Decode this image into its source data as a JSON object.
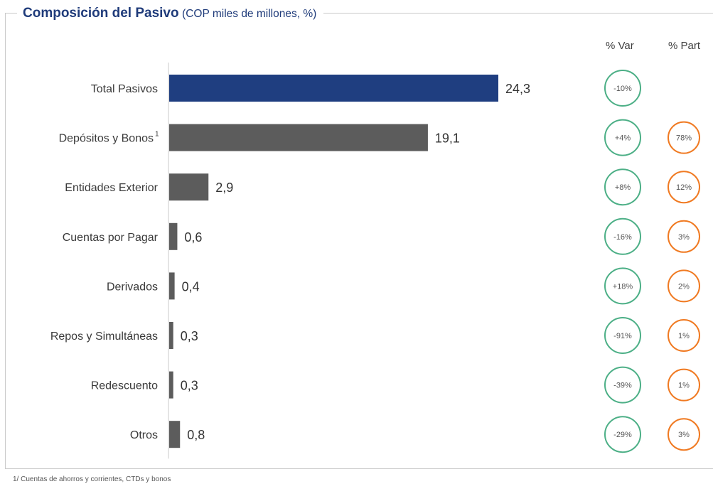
{
  "header": {
    "title": "Composición del Pasivo",
    "subtitle": "(COP miles de millones, %)"
  },
  "columns": {
    "var_label": "% Var",
    "part_label": "% Part"
  },
  "colors": {
    "total_bar": "#1f3e80",
    "item_bar": "#5c5c5c",
    "var_circle": "#4caf86",
    "part_circle": "#f07a22"
  },
  "chart_data": {
    "type": "bar",
    "orientation": "horizontal",
    "categories": [
      "Total Pasivos",
      "Depósitos y Bonos",
      "Entidades Exterior",
      "Cuentas por Pagar",
      "Derivados",
      "Repos y Simultáneas",
      "Redescuento",
      "Otros"
    ],
    "category_superscripts": [
      "",
      "1",
      "",
      "",
      "",
      "",
      "",
      ""
    ],
    "values": [
      24.3,
      19.1,
      2.9,
      0.6,
      0.4,
      0.3,
      0.3,
      0.8
    ],
    "value_labels": [
      "24,3",
      "19,1",
      "2,9",
      "0,6",
      "0,4",
      "0,3",
      "0,3",
      "0,8"
    ],
    "pct_var": [
      "-10%",
      "+4%",
      "+8%",
      "-16%",
      "+18%",
      "-91%",
      "-39%",
      "-29%"
    ],
    "pct_part": [
      "",
      "78%",
      "12%",
      "3%",
      "2%",
      "1%",
      "1%",
      "3%"
    ],
    "xlim": [
      0,
      24.3
    ],
    "grid": false,
    "legend": "none"
  },
  "footnote": "1/ Cuentas de ahorros y corrientes, CTDs y bonos"
}
